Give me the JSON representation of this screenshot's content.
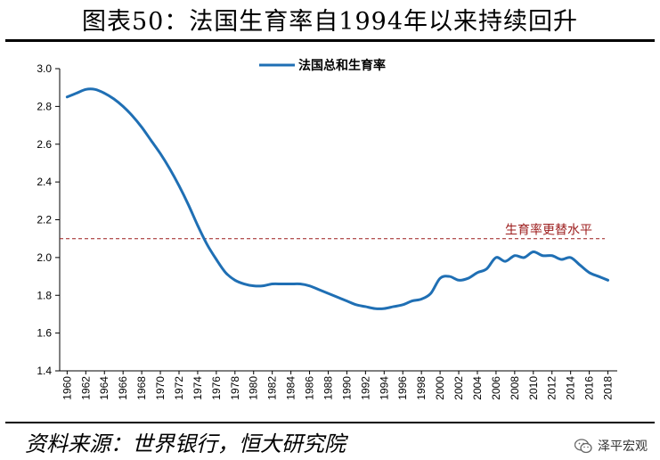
{
  "header": {
    "title": "图表50：法国生育率自1994年以来持续回升"
  },
  "footer": {
    "source": "资料来源：世界银行，恒大研究院",
    "watermark": "泽平宏观"
  },
  "chart_data": {
    "type": "line",
    "title": "图表50：法国生育率自1994年以来持续回升",
    "xlabel": "",
    "ylabel": "",
    "ylim": [
      1.4,
      3.0
    ],
    "yticks": [
      "1.4",
      "1.6",
      "1.8",
      "2.0",
      "2.2",
      "2.4",
      "2.6",
      "2.8",
      "3.0"
    ],
    "xticks": [
      "1960",
      "1962",
      "1964",
      "1966",
      "1968",
      "1970",
      "1972",
      "1974",
      "1976",
      "1978",
      "1980",
      "1982",
      "1984",
      "1986",
      "1988",
      "1990",
      "1992",
      "1994",
      "1996",
      "1998",
      "2000",
      "2002",
      "2004",
      "2006",
      "2008",
      "2010",
      "2012",
      "2014",
      "2016",
      "2018"
    ],
    "grid": false,
    "legend": "top-center",
    "series": [
      {
        "name": "法国总和生育率",
        "color": "#1f6fb4",
        "x": [
          1960,
          1961,
          1962,
          1963,
          1964,
          1965,
          1966,
          1967,
          1968,
          1969,
          1970,
          1971,
          1972,
          1973,
          1974,
          1975,
          1976,
          1977,
          1978,
          1979,
          1980,
          1981,
          1982,
          1983,
          1984,
          1985,
          1986,
          1987,
          1988,
          1989,
          1990,
          1991,
          1992,
          1993,
          1994,
          1995,
          1996,
          1997,
          1998,
          1999,
          2000,
          2001,
          2002,
          2003,
          2004,
          2005,
          2006,
          2007,
          2008,
          2009,
          2010,
          2011,
          2012,
          2013,
          2014,
          2015,
          2016,
          2017,
          2018
        ],
        "values": [
          2.85,
          2.87,
          2.89,
          2.89,
          2.87,
          2.84,
          2.8,
          2.75,
          2.69,
          2.62,
          2.55,
          2.47,
          2.38,
          2.28,
          2.17,
          2.07,
          1.99,
          1.92,
          1.88,
          1.86,
          1.85,
          1.85,
          1.86,
          1.86,
          1.86,
          1.86,
          1.85,
          1.83,
          1.81,
          1.79,
          1.77,
          1.75,
          1.74,
          1.73,
          1.73,
          1.74,
          1.75,
          1.77,
          1.78,
          1.81,
          1.89,
          1.9,
          1.88,
          1.89,
          1.92,
          1.94,
          2.0,
          1.98,
          2.01,
          2.0,
          2.03,
          2.01,
          2.01,
          1.99,
          2.0,
          1.96,
          1.92,
          1.9,
          1.88
        ]
      }
    ],
    "reference_line": {
      "label": "生育率更替水平",
      "value": 2.1,
      "color": "#9c1c1c"
    }
  }
}
